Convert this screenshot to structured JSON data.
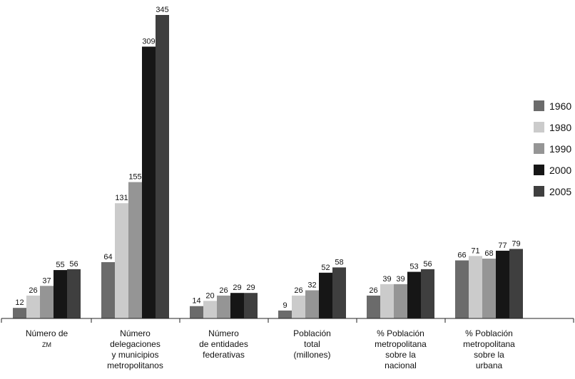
{
  "chart_data": {
    "type": "bar",
    "title": "",
    "xlabel": "",
    "ylabel": "",
    "ylim": [
      0,
      345
    ],
    "grid": false,
    "legend_position": "right",
    "categories": [
      [
        "Número de",
        "ZM"
      ],
      [
        "Número",
        "delegaciones",
        "y municipios",
        "metropolitanos"
      ],
      [
        "Número",
        "de entidades",
        "federativas"
      ],
      [
        "Población",
        "total",
        "(millones)"
      ],
      [
        "% Población",
        "metropolitana",
        "sobre la",
        "nacional"
      ],
      [
        "% Población",
        "metropolitana",
        "sobre la",
        "urbana"
      ]
    ],
    "series": [
      {
        "name": "1960",
        "color": "#6b6b6b",
        "values": [
          12,
          64,
          14,
          9,
          26,
          66
        ]
      },
      {
        "name": "1980",
        "color": "#cbcbcb",
        "values": [
          26,
          131,
          20,
          26,
          39,
          71
        ]
      },
      {
        "name": "1990",
        "color": "#959595",
        "values": [
          37,
          155,
          26,
          32,
          39,
          68
        ]
      },
      {
        "name": "2000",
        "color": "#161616",
        "values": [
          55,
          309,
          29,
          52,
          53,
          77
        ]
      },
      {
        "name": "2005",
        "color": "#3f3f3f",
        "values": [
          56,
          345,
          29,
          58,
          56,
          79
        ]
      }
    ]
  }
}
